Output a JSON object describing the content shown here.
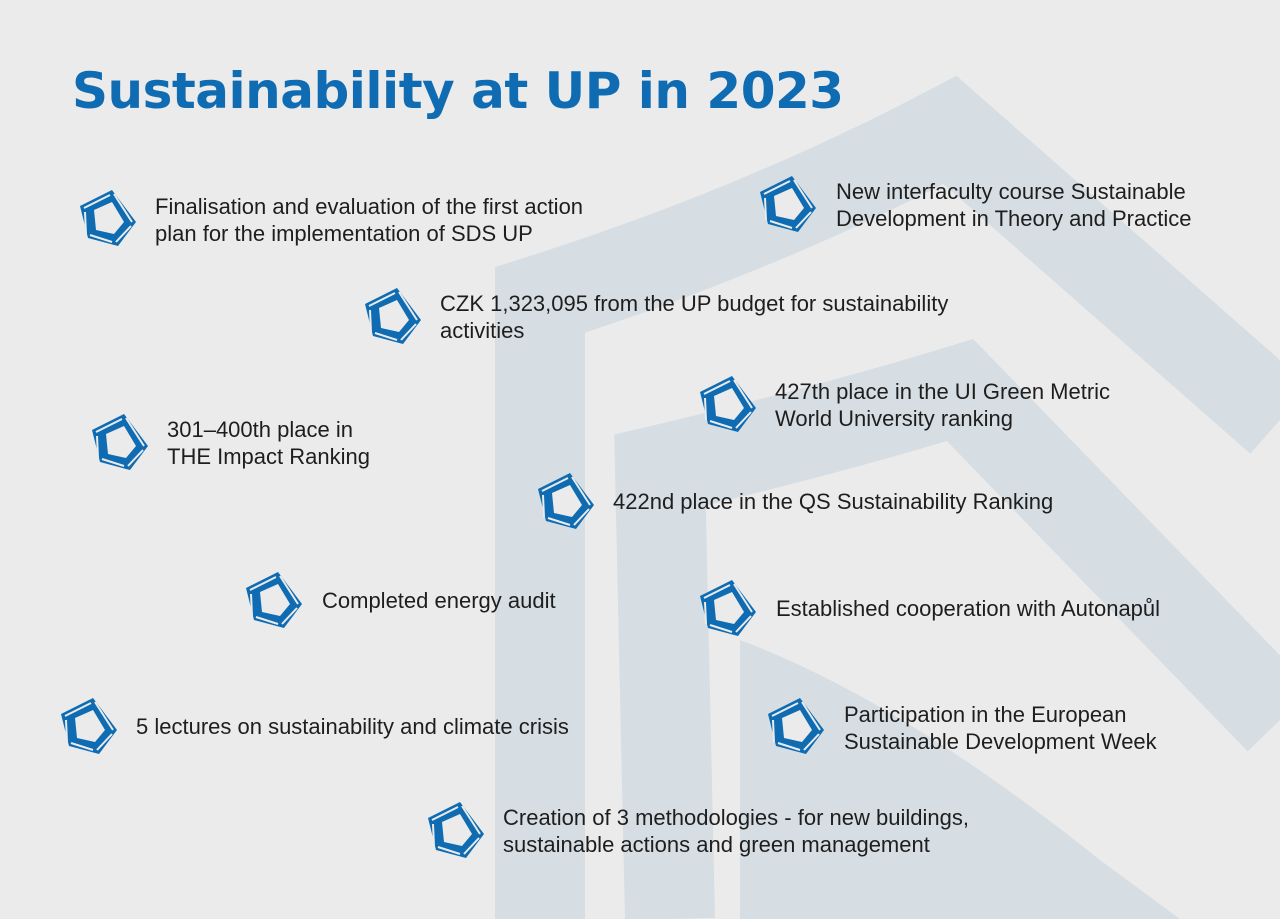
{
  "title": "Sustainability at UP in 2023",
  "accent": "#0f6cb2",
  "items": [
    {
      "l1": "Finalisation and evaluation of the first action",
      "l2": "plan for the implementation of SDS UP"
    },
    {
      "l1": "New interfaculty course Sustainable",
      "l2": "Development in Theory and Practice"
    },
    {
      "l1": "CZK 1,323,095 from the UP budget for sustainability",
      "l2": "activities"
    },
    {
      "l1": "427th place in the UI Green Metric",
      "l2": "World University ranking"
    },
    {
      "l1": "301–400th place in",
      "l2": "THE Impact Ranking"
    },
    {
      "l1": "422nd place in the QS Sustainability Ranking",
      "l2": ""
    },
    {
      "l1": "Completed energy audit",
      "l2": ""
    },
    {
      "l1": "Established cooperation with Autonapůl",
      "l2": ""
    },
    {
      "l1": "5 lectures on sustainability and climate crisis",
      "l2": ""
    },
    {
      "l1": "Participation in the European",
      "l2": "Sustainable Development Week"
    },
    {
      "l1": "Creation of 3 methodologies - for new buildings,",
      "l2": "sustainable actions and green management"
    }
  ]
}
